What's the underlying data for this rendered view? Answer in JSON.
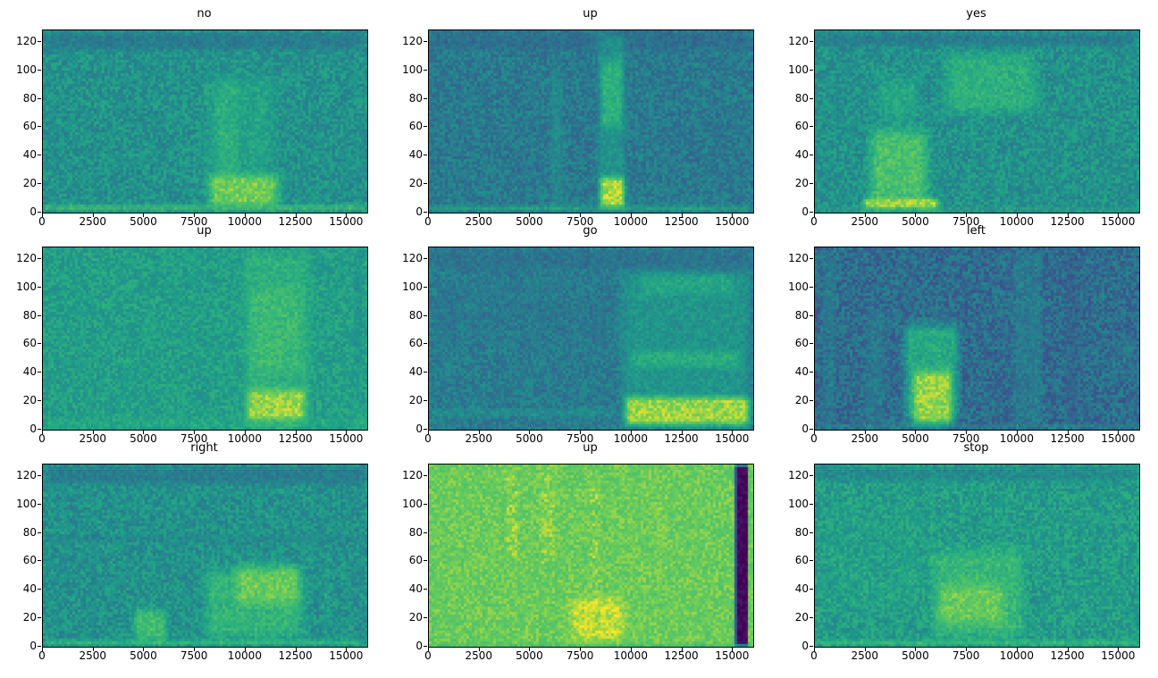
{
  "figure": {
    "background": "#ffffff",
    "text_color": "#000000",
    "description": "3x3 grid of audio spectrograms of spoken keywords, viridis colormap"
  },
  "chart_data": {
    "type": "heatmap",
    "layout": {
      "rows": 3,
      "cols": 3
    },
    "colormap": "viridis",
    "viridis_stops": [
      [
        0.0,
        68,
        1,
        84
      ],
      [
        0.125,
        72,
        40,
        120
      ],
      [
        0.25,
        62,
        74,
        137
      ],
      [
        0.375,
        49,
        104,
        142
      ],
      [
        0.5,
        38,
        130,
        142
      ],
      [
        0.625,
        31,
        158,
        137
      ],
      [
        0.75,
        53,
        183,
        121
      ],
      [
        0.875,
        109,
        205,
        89
      ],
      [
        1.0,
        253,
        231,
        37
      ]
    ],
    "xlim": [
      0,
      16000
    ],
    "ylim": [
      0,
      128
    ],
    "xticks": [
      0,
      2500,
      5000,
      7500,
      10000,
      12500,
      15000
    ],
    "yticks": [
      0,
      20,
      40,
      60,
      80,
      100,
      120
    ],
    "subplots": [
      {
        "title": "no",
        "seed": 11,
        "base": 0.57,
        "noise": 0.11,
        "elements": [
          {
            "x": [
              0,
              16000
            ],
            "y": [
              112,
              128
            ],
            "v": 0.43,
            "fy": 5,
            "mix": 0.7
          },
          {
            "x": [
              7600,
              11800
            ],
            "y": [
              8,
              100
            ],
            "v": 0.7,
            "fx": 900,
            "fy": 14,
            "mix": 0.6
          },
          {
            "x": [
              8400,
              9800
            ],
            "y": [
              20,
              98
            ],
            "v": 0.76,
            "fx": 400,
            "fy": 10,
            "mix": 0.5
          },
          {
            "x": [
              7900,
              11900
            ],
            "y": [
              0,
              30
            ],
            "v": 0.93,
            "fx": 600,
            "fy": 8,
            "mix": 0.8
          },
          {
            "x": [
              0,
              16000
            ],
            "y": [
              0,
              7
            ],
            "v": 0.8,
            "fx": 200,
            "fy": 3,
            "mix": 0.75
          }
        ]
      },
      {
        "title": "up",
        "seed": 22,
        "base": 0.46,
        "noise": 0.11,
        "elements": [
          {
            "x": [
              0,
              16000
            ],
            "y": [
              112,
              128
            ],
            "v": 0.38,
            "fy": 5,
            "mix": 0.6
          },
          {
            "x": [
              5900,
              6700
            ],
            "y": [
              0,
              105
            ],
            "v": 0.58,
            "fx": 250,
            "fy": 12,
            "mix": 0.6
          },
          {
            "x": [
              8200,
              9800
            ],
            "y": [
              0,
              128
            ],
            "v": 0.62,
            "fx": 350,
            "fy": 8,
            "mix": 0.7
          },
          {
            "x": [
              8400,
              9700
            ],
            "y": [
              55,
              112
            ],
            "v": 0.78,
            "fx": 300,
            "fy": 10,
            "mix": 0.7
          },
          {
            "x": [
              8300,
              9800
            ],
            "y": [
              0,
              28
            ],
            "v": 0.97,
            "fx": 300,
            "fy": 6,
            "mix": 0.9
          },
          {
            "x": [
              0,
              16000
            ],
            "y": [
              0,
              6
            ],
            "v": 0.72,
            "fy": 3,
            "mix": 0.7
          }
        ]
      },
      {
        "title": "yes",
        "seed": 33,
        "base": 0.57,
        "noise": 0.11,
        "elements": [
          {
            "x": [
              0,
              16000
            ],
            "y": [
              115,
              128
            ],
            "v": 0.42,
            "fy": 5,
            "mix": 0.65
          },
          {
            "x": [
              2400,
              5900
            ],
            "y": [
              0,
              65
            ],
            "v": 0.88,
            "fx": 700,
            "fy": 14,
            "mix": 0.75
          },
          {
            "x": [
              3000,
              5300
            ],
            "y": [
              60,
              100
            ],
            "v": 0.74,
            "fx": 500,
            "fy": 12,
            "mix": 0.6
          },
          {
            "x": [
              6000,
              11300
            ],
            "y": [
              66,
              116
            ],
            "v": 0.77,
            "fx": 900,
            "fy": 10,
            "mix": 0.7
          },
          {
            "x": [
              2200,
              6300
            ],
            "y": [
              0,
              12
            ],
            "v": 0.97,
            "fx": 400,
            "fy": 4,
            "mix": 0.85
          },
          {
            "x": [
              0,
              16000
            ],
            "y": [
              0,
              5
            ],
            "v": 0.7,
            "fy": 3,
            "mix": 0.5
          }
        ]
      },
      {
        "title": "up",
        "seed": 44,
        "base": 0.63,
        "noise": 0.09,
        "elements": [
          {
            "x": [
              9700,
              13400
            ],
            "y": [
              0,
              128
            ],
            "v": 0.74,
            "fx": 500,
            "fy": 8,
            "mix": 0.7
          },
          {
            "x": [
              10000,
              13000
            ],
            "y": [
              35,
              105
            ],
            "v": 0.8,
            "fx": 500,
            "fy": 12,
            "mix": 0.55
          },
          {
            "x": [
              9900,
              13100
            ],
            "y": [
              0,
              32
            ],
            "v": 0.95,
            "fx": 400,
            "fy": 8,
            "mix": 0.85
          },
          {
            "x": [
              0,
              16000
            ],
            "y": [
              0,
              10
            ],
            "v": 0.7,
            "fy": 4,
            "mix": 0.6
          },
          {
            "x": [
              15300,
              15800
            ],
            "y": [
              40,
              128
            ],
            "v": 0.52,
            "fx": 150,
            "fy": 20,
            "mix": 0.5
          }
        ]
      },
      {
        "title": "go",
        "seed": 55,
        "base": 0.47,
        "noise": 0.1,
        "elements": [
          {
            "x": [
              0,
              16000
            ],
            "y": [
              110,
              128
            ],
            "v": 0.4,
            "fy": 6,
            "mix": 0.6
          },
          {
            "x": [
              0,
              9300
            ],
            "y": [
              55,
              110
            ],
            "v": 0.44,
            "fx": 500,
            "fy": 15,
            "mix": 0.4
          },
          {
            "x": [
              0,
              9300
            ],
            "y": [
              8,
              16
            ],
            "v": 0.6,
            "fx": 300,
            "fy": 3,
            "mix": 0.6
          },
          {
            "x": [
              9300,
              16000
            ],
            "y": [
              0,
              115
            ],
            "v": 0.63,
            "fx": 500,
            "fy": 10,
            "mix": 0.7
          },
          {
            "x": [
              9800,
              15600
            ],
            "y": [
              40,
              58
            ],
            "v": 0.76,
            "fx": 500,
            "fy": 6,
            "mix": 0.6
          },
          {
            "x": [
              10200,
              15200
            ],
            "y": [
              92,
              112
            ],
            "v": 0.72,
            "fx": 500,
            "fy": 6,
            "mix": 0.6
          },
          {
            "x": [
              9500,
              16000
            ],
            "y": [
              0,
              26
            ],
            "v": 0.95,
            "fx": 400,
            "fy": 6,
            "mix": 0.9
          }
        ]
      },
      {
        "title": "left",
        "seed": 66,
        "base": 0.4,
        "noise": 0.13,
        "elements": [
          {
            "x": [
              300,
              1100
            ],
            "y": [
              0,
              128
            ],
            "v": 0.5,
            "fx": 200,
            "fy": 10,
            "mix": 0.5
          },
          {
            "x": [
              2400,
              3600
            ],
            "y": [
              0,
              90
            ],
            "v": 0.5,
            "fx": 300,
            "fy": 12,
            "mix": 0.5
          },
          {
            "x": [
              4200,
              7300
            ],
            "y": [
              0,
              80
            ],
            "v": 0.8,
            "fx": 500,
            "fy": 12,
            "mix": 0.7
          },
          {
            "x": [
              4700,
              6900
            ],
            "y": [
              0,
              45
            ],
            "v": 0.95,
            "fx": 350,
            "fy": 8,
            "mix": 0.85
          },
          {
            "x": [
              9700,
              11300
            ],
            "y": [
              0,
              128
            ],
            "v": 0.52,
            "fx": 300,
            "fy": 10,
            "mix": 0.55
          },
          {
            "x": [
              12300,
              13100
            ],
            "y": [
              0,
              128
            ],
            "v": 0.33,
            "fx": 200,
            "fy": 10,
            "mix": 0.5
          },
          {
            "x": [
              14500,
              16000
            ],
            "y": [
              30,
              70
            ],
            "v": 0.5,
            "fx": 300,
            "fy": 10,
            "mix": 0.4
          },
          {
            "x": [
              0,
              16000
            ],
            "y": [
              0,
              5
            ],
            "v": 0.62,
            "fy": 3,
            "mix": 0.5
          }
        ]
      },
      {
        "title": "right",
        "seed": 77,
        "base": 0.57,
        "noise": 0.11,
        "elements": [
          {
            "x": [
              0,
              16000
            ],
            "y": [
              112,
              128
            ],
            "v": 0.42,
            "fy": 5,
            "mix": 0.65
          },
          {
            "x": [
              0,
              16000
            ],
            "y": [
              72,
              80
            ],
            "v": 0.48,
            "fy": 4,
            "mix": 0.45
          },
          {
            "x": [
              2300,
              2700
            ],
            "y": [
              0,
              90
            ],
            "v": 0.5,
            "fx": 120,
            "fy": 12,
            "mix": 0.4
          },
          {
            "x": [
              4300,
              6300
            ],
            "y": [
              0,
              30
            ],
            "v": 0.84,
            "fx": 400,
            "fy": 8,
            "mix": 0.75
          },
          {
            "x": [
              7700,
              13200
            ],
            "y": [
              0,
              60
            ],
            "v": 0.8,
            "fx": 700,
            "fy": 12,
            "mix": 0.7
          },
          {
            "x": [
              9300,
              12900
            ],
            "y": [
              25,
              62
            ],
            "v": 0.9,
            "fx": 500,
            "fy": 10,
            "mix": 0.7
          },
          {
            "x": [
              13800,
              14200
            ],
            "y": [
              0,
              70
            ],
            "v": 0.68,
            "fx": 150,
            "fy": 10,
            "mix": 0.4
          },
          {
            "x": [
              0,
              16000
            ],
            "y": [
              0,
              6
            ],
            "v": 0.8,
            "fy": 3,
            "mix": 0.7
          }
        ]
      },
      {
        "title": "up",
        "seed": 88,
        "base": 0.86,
        "noise": 0.06,
        "elements": [
          {
            "x": [
              3700,
              4500
            ],
            "y": [
              55,
              128
            ],
            "v": 0.93,
            "fx": 200,
            "fy": 10,
            "mix": 0.5
          },
          {
            "x": [
              5400,
              6300
            ],
            "y": [
              55,
              128
            ],
            "v": 0.93,
            "fx": 200,
            "fy": 10,
            "mix": 0.5
          },
          {
            "x": [
              6700,
              9900
            ],
            "y": [
              0,
              40
            ],
            "v": 0.98,
            "fx": 600,
            "fy": 10,
            "mix": 0.8
          },
          {
            "x": [
              7800,
              8600
            ],
            "y": [
              0,
              128
            ],
            "v": 0.92,
            "fx": 250,
            "fy": 10,
            "mix": 0.4
          },
          {
            "x": [
              11300,
              11800
            ],
            "y": [
              40,
              110
            ],
            "v": 0.92,
            "fx": 150,
            "fy": 10,
            "mix": 0.4
          },
          {
            "x": [
              15100,
              15750
            ],
            "y": [
              0,
              128
            ],
            "v": 0.02,
            "fx": 60,
            "fy": 2,
            "mix": 1
          },
          {
            "x": [
              0,
              16000
            ],
            "y": [
              0,
              3
            ],
            "v": 0.65,
            "fy": 2,
            "mix": 0.5
          }
        ]
      },
      {
        "title": "stop",
        "seed": 99,
        "base": 0.62,
        "noise": 0.11,
        "elements": [
          {
            "x": [
              0,
              16000
            ],
            "y": [
              114,
              128
            ],
            "v": 0.47,
            "fy": 5,
            "mix": 0.55
          },
          {
            "x": [
              0,
              5600
            ],
            "y": [
              20,
              105
            ],
            "v": 0.67,
            "fx": 700,
            "fy": 15,
            "mix": 0.4
          },
          {
            "x": [
              5500,
              10600
            ],
            "y": [
              0,
              75
            ],
            "v": 0.8,
            "fx": 700,
            "fy": 14,
            "mix": 0.7
          },
          {
            "x": [
              5900,
              9600
            ],
            "y": [
              12,
              48
            ],
            "v": 0.9,
            "fx": 500,
            "fy": 10,
            "mix": 0.7
          },
          {
            "x": [
              5600,
              5950
            ],
            "y": [
              0,
              128
            ],
            "v": 0.7,
            "fx": 120,
            "fy": 10,
            "mix": 0.45
          },
          {
            "x": [
              0,
              16000
            ],
            "y": [
              0,
              6
            ],
            "v": 0.8,
            "fy": 3,
            "mix": 0.7
          }
        ]
      }
    ]
  }
}
